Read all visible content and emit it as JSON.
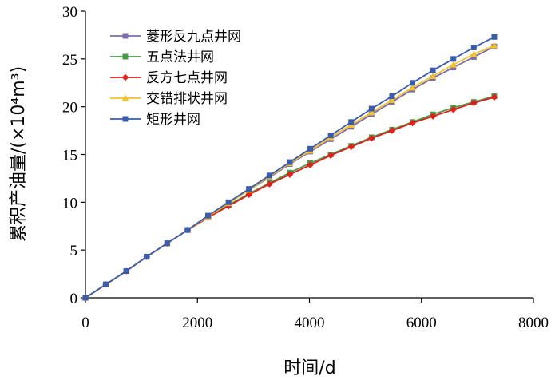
{
  "chart_data": {
    "type": "line",
    "xlabel": "时间/d",
    "ylabel": "累积产油量/(×10⁴m³)",
    "xlim": [
      0,
      8000
    ],
    "ylim": [
      0,
      30
    ],
    "xticks": [
      0,
      2000,
      4000,
      6000,
      8000
    ],
    "yticks": [
      0,
      5,
      10,
      15,
      20,
      25,
      30
    ],
    "grid": false,
    "legend_position": "top-left",
    "x": [
      0,
      365,
      730,
      1095,
      1460,
      1825,
      2190,
      2555,
      2920,
      3285,
      3650,
      4015,
      4380,
      4745,
      5110,
      5475,
      5840,
      6205,
      6570,
      6935,
      7300
    ],
    "series": [
      {
        "name": "菱形反九点井网",
        "color": "#7e6ea6",
        "marker": "square",
        "values": [
          0,
          1.4,
          2.8,
          4.3,
          5.7,
          7.1,
          8.5,
          9.9,
          11.3,
          12.6,
          14.0,
          15.3,
          16.6,
          17.9,
          19.2,
          20.5,
          21.8,
          23.0,
          24.1,
          25.2,
          26.3
        ]
      },
      {
        "name": "五点法井网",
        "color": "#4a9a46",
        "marker": "square",
        "values": [
          0,
          1.4,
          2.8,
          4.3,
          5.7,
          7.1,
          8.4,
          9.7,
          10.9,
          12.0,
          13.1,
          14.1,
          15.0,
          15.9,
          16.8,
          17.6,
          18.4,
          19.2,
          19.9,
          20.5,
          21.1
        ]
      },
      {
        "name": "反方七点井网",
        "color": "#e0201c",
        "marker": "diamond",
        "values": [
          0,
          1.4,
          2.8,
          4.3,
          5.7,
          7.1,
          8.4,
          9.6,
          10.8,
          11.9,
          12.9,
          13.9,
          14.9,
          15.8,
          16.7,
          17.5,
          18.3,
          19.0,
          19.7,
          20.4,
          21.0
        ]
      },
      {
        "name": "交错排状井网",
        "color": "#f2c12e",
        "marker": "triangle",
        "values": [
          0,
          1.4,
          2.8,
          4.3,
          5.7,
          7.1,
          8.5,
          9.9,
          11.3,
          12.7,
          14.1,
          15.4,
          16.8,
          18.1,
          19.4,
          20.7,
          22.0,
          23.2,
          24.4,
          25.5,
          26.4
        ]
      },
      {
        "name": "矩形井网",
        "color": "#3b5bab",
        "marker": "square",
        "values": [
          0,
          1.4,
          2.8,
          4.3,
          5.7,
          7.1,
          8.6,
          10.0,
          11.4,
          12.8,
          14.2,
          15.6,
          17.0,
          18.4,
          19.8,
          21.1,
          22.5,
          23.8,
          25.0,
          26.2,
          27.3
        ]
      }
    ]
  }
}
